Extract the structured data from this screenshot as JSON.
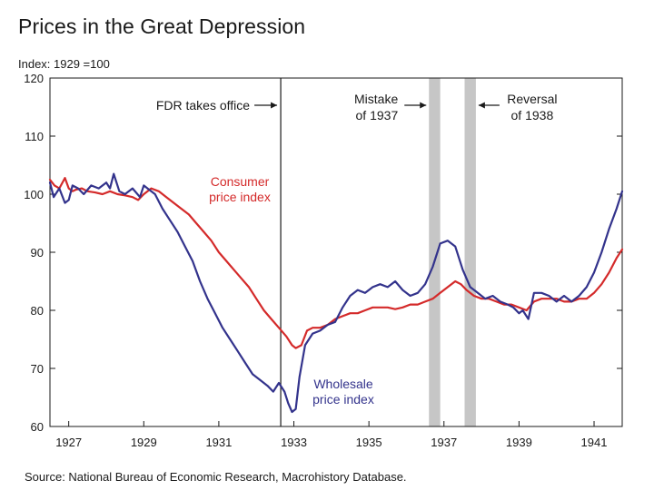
{
  "chart_data": {
    "type": "line",
    "title": "Prices in the Great Depression",
    "y_unit_label": "Index: 1929 =100",
    "source": "Source: National Bureau of Economic Research, Macrohistory Database.",
    "xlim": [
      1926.5,
      1941.75
    ],
    "ylim": [
      60,
      120
    ],
    "x_ticks": [
      1927,
      1929,
      1931,
      1933,
      1935,
      1937,
      1939,
      1941
    ],
    "x_tick_labels": [
      "1927",
      "1929",
      "1931",
      "1933",
      "1935",
      "1937",
      "1939",
      "1941"
    ],
    "y_ticks": [
      60,
      70,
      80,
      90,
      100,
      110,
      120
    ],
    "y_tick_labels": [
      "60",
      "70",
      "80",
      "90",
      "100",
      "110",
      "120"
    ],
    "series": [
      {
        "name": "Consumer price index",
        "label_lines": [
          "Consumer",
          "price index"
        ],
        "color": "#d42a2a",
        "x": [
          1926.5,
          1926.62,
          1926.75,
          1926.9,
          1927.0,
          1927.1,
          1927.2,
          1927.35,
          1927.5,
          1927.7,
          1927.9,
          1928.1,
          1928.3,
          1928.5,
          1928.7,
          1928.85,
          1929.0,
          1929.2,
          1929.4,
          1929.6,
          1929.8,
          1930.0,
          1930.2,
          1930.4,
          1930.6,
          1930.8,
          1931.0,
          1931.2,
          1931.4,
          1931.6,
          1931.8,
          1932.0,
          1932.2,
          1932.4,
          1932.6,
          1932.8,
          1932.95,
          1933.05,
          1933.2,
          1933.35,
          1933.5,
          1933.7,
          1933.9,
          1934.1,
          1934.3,
          1934.5,
          1934.7,
          1934.9,
          1935.1,
          1935.3,
          1935.5,
          1935.7,
          1935.9,
          1936.1,
          1936.3,
          1936.5,
          1936.7,
          1936.9,
          1937.1,
          1937.3,
          1937.45,
          1937.6,
          1937.8,
          1938.0,
          1938.2,
          1938.4,
          1938.6,
          1938.8,
          1939.0,
          1939.2,
          1939.4,
          1939.6,
          1939.8,
          1940.0,
          1940.2,
          1940.4,
          1940.6,
          1940.8,
          1941.0,
          1941.2,
          1941.4,
          1941.6,
          1941.75
        ],
        "values": [
          102.5,
          101.5,
          101.0,
          102.8,
          101.0,
          100.5,
          100.8,
          101.0,
          100.5,
          100.3,
          100.0,
          100.5,
          100.0,
          99.8,
          99.5,
          99.0,
          100.0,
          101.0,
          100.5,
          99.5,
          98.5,
          97.5,
          96.5,
          95.0,
          93.5,
          92.0,
          90.0,
          88.5,
          87.0,
          85.5,
          84.0,
          82.0,
          80.0,
          78.5,
          77.0,
          75.5,
          74.0,
          73.5,
          74.0,
          76.5,
          77.0,
          77.0,
          77.5,
          78.5,
          79.0,
          79.5,
          79.5,
          80.0,
          80.5,
          80.5,
          80.5,
          80.2,
          80.5,
          81.0,
          81.0,
          81.5,
          82.0,
          83.0,
          84.0,
          85.0,
          84.5,
          83.5,
          82.5,
          82.0,
          82.0,
          81.5,
          81.0,
          81.0,
          80.5,
          80.0,
          81.5,
          82.0,
          82.0,
          82.0,
          81.5,
          81.5,
          82.0,
          82.0,
          83.0,
          84.5,
          86.5,
          89.0,
          90.5
        ]
      },
      {
        "name": "Wholesale price index",
        "label_lines": [
          "Wholesale",
          "price index"
        ],
        "color": "#33338c",
        "x": [
          1926.5,
          1926.6,
          1926.75,
          1926.9,
          1927.0,
          1927.1,
          1927.25,
          1927.4,
          1927.6,
          1927.8,
          1928.0,
          1928.1,
          1928.2,
          1928.35,
          1928.5,
          1928.7,
          1928.9,
          1929.0,
          1929.1,
          1929.3,
          1929.5,
          1929.7,
          1929.9,
          1930.1,
          1930.3,
          1930.5,
          1930.7,
          1930.9,
          1931.1,
          1931.3,
          1931.5,
          1931.7,
          1931.9,
          1932.1,
          1932.3,
          1932.45,
          1932.6,
          1932.75,
          1932.85,
          1932.95,
          1933.05,
          1933.15,
          1933.3,
          1933.5,
          1933.7,
          1933.9,
          1934.1,
          1934.3,
          1934.5,
          1934.7,
          1934.9,
          1935.1,
          1935.3,
          1935.5,
          1935.7,
          1935.9,
          1936.1,
          1936.3,
          1936.5,
          1936.7,
          1936.9,
          1937.1,
          1937.3,
          1937.5,
          1937.7,
          1937.9,
          1938.1,
          1938.3,
          1938.5,
          1938.7,
          1938.85,
          1939.0,
          1939.1,
          1939.25,
          1939.4,
          1939.6,
          1939.8,
          1940.0,
          1940.2,
          1940.4,
          1940.6,
          1940.8,
          1941.0,
          1941.2,
          1941.4,
          1941.6,
          1941.75
        ],
        "values": [
          102.0,
          99.5,
          101.0,
          98.5,
          99.0,
          101.5,
          101.0,
          100.0,
          101.5,
          101.0,
          102.0,
          101.0,
          103.5,
          100.5,
          100.0,
          101.0,
          99.5,
          101.5,
          101.0,
          100.0,
          97.5,
          95.5,
          93.5,
          91.0,
          88.5,
          85.0,
          82.0,
          79.5,
          77.0,
          75.0,
          73.0,
          71.0,
          69.0,
          68.0,
          67.0,
          66.0,
          67.5,
          66.0,
          64.0,
          62.5,
          63.0,
          68.5,
          74.0,
          76.0,
          76.5,
          77.5,
          78.0,
          80.5,
          82.5,
          83.5,
          83.0,
          84.0,
          84.5,
          84.0,
          85.0,
          83.5,
          82.5,
          83.0,
          84.5,
          87.5,
          91.5,
          92.0,
          91.0,
          87.0,
          84.0,
          83.0,
          82.0,
          82.5,
          81.5,
          81.0,
          80.5,
          79.5,
          80.0,
          78.5,
          83.0,
          83.0,
          82.5,
          81.5,
          82.5,
          81.5,
          82.5,
          84.0,
          86.5,
          90.0,
          94.0,
          97.5,
          100.5
        ]
      }
    ],
    "annotations": [
      {
        "id": "fdr",
        "type": "vline",
        "x": 1932.65,
        "lines": [
          "FDR takes office"
        ],
        "arrow": "right",
        "ylevel": 114
      },
      {
        "id": "mistake",
        "type": "band",
        "x0": 1936.6,
        "x1": 1936.9,
        "lines": [
          "Mistake",
          "of 1937"
        ],
        "arrow": "right",
        "ylevel": 114
      },
      {
        "id": "reversal",
        "type": "band",
        "x0": 1937.55,
        "x1": 1937.85,
        "lines": [
          "Reversal",
          "of 1938"
        ],
        "arrow": "left",
        "ylevel": 114
      }
    ]
  }
}
